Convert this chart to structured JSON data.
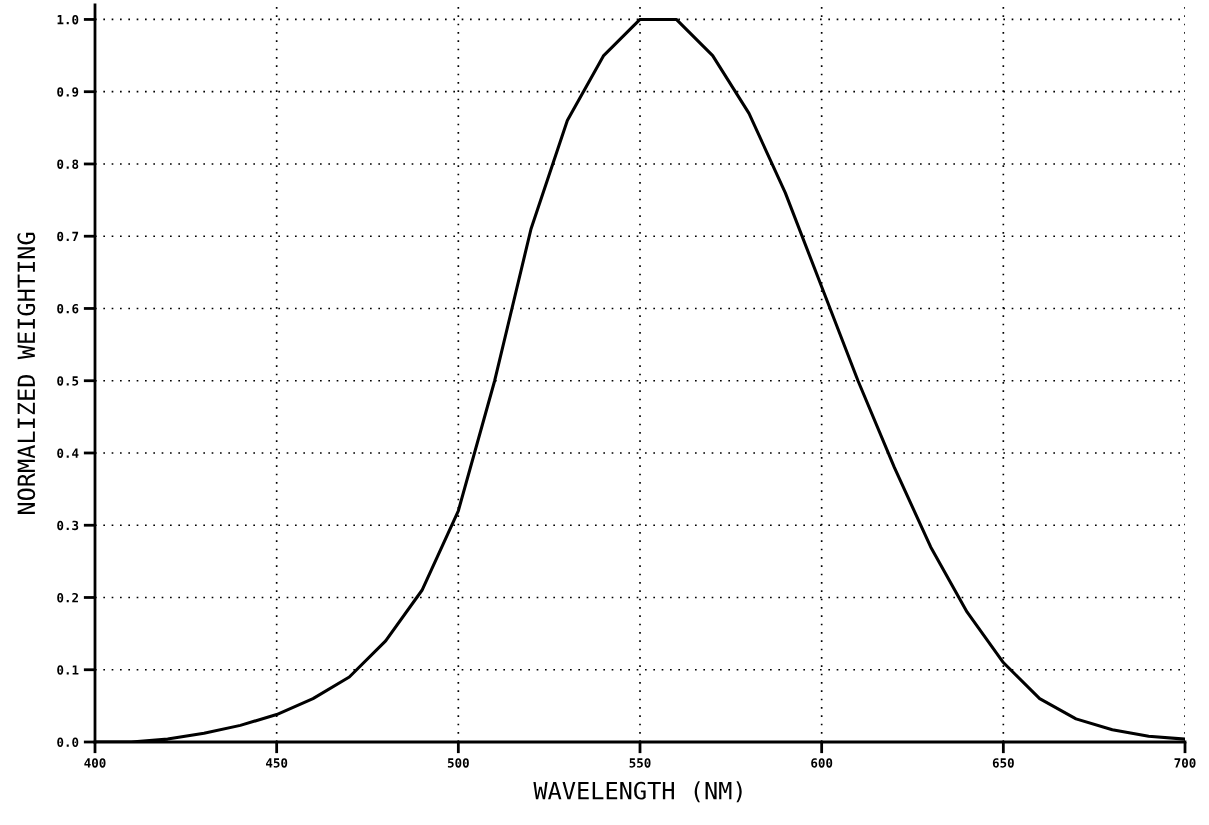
{
  "chart_data": {
    "type": "line",
    "xlabel": "WAVELENGTH (NM)",
    "ylabel": "NORMALIZED WEIGHTING",
    "x": [
      400,
      410,
      420,
      430,
      440,
      450,
      460,
      470,
      480,
      490,
      500,
      510,
      520,
      530,
      540,
      550,
      560,
      570,
      580,
      590,
      600,
      610,
      620,
      630,
      640,
      650,
      660,
      670,
      680,
      690,
      700
    ],
    "series": [
      {
        "color": "#000000",
        "values": [
          0.0,
          0.0,
          0.004,
          0.012,
          0.023,
          0.038,
          0.06,
          0.09,
          0.14,
          0.21,
          0.32,
          0.5,
          0.71,
          0.86,
          0.95,
          1.0,
          1.0,
          0.95,
          0.87,
          0.76,
          0.63,
          0.5,
          0.38,
          0.27,
          0.18,
          0.11,
          0.06,
          0.032,
          0.017,
          0.008,
          0.004
        ]
      }
    ],
    "xlim": [
      400,
      700
    ],
    "xticks": [
      400,
      450,
      500,
      550,
      600,
      650,
      700
    ],
    "ylim": [
      0,
      1.02
    ],
    "yticks": [
      {
        "value": 0,
        "label": "0.0"
      },
      0.1,
      0.2,
      0.3,
      0.4,
      0.5,
      0.6,
      0.7,
      0.8,
      0.9,
      {
        "value": 1,
        "label": "1.0"
      }
    ],
    "grid": true,
    "line_style": "solid",
    "marker": "none"
  }
}
